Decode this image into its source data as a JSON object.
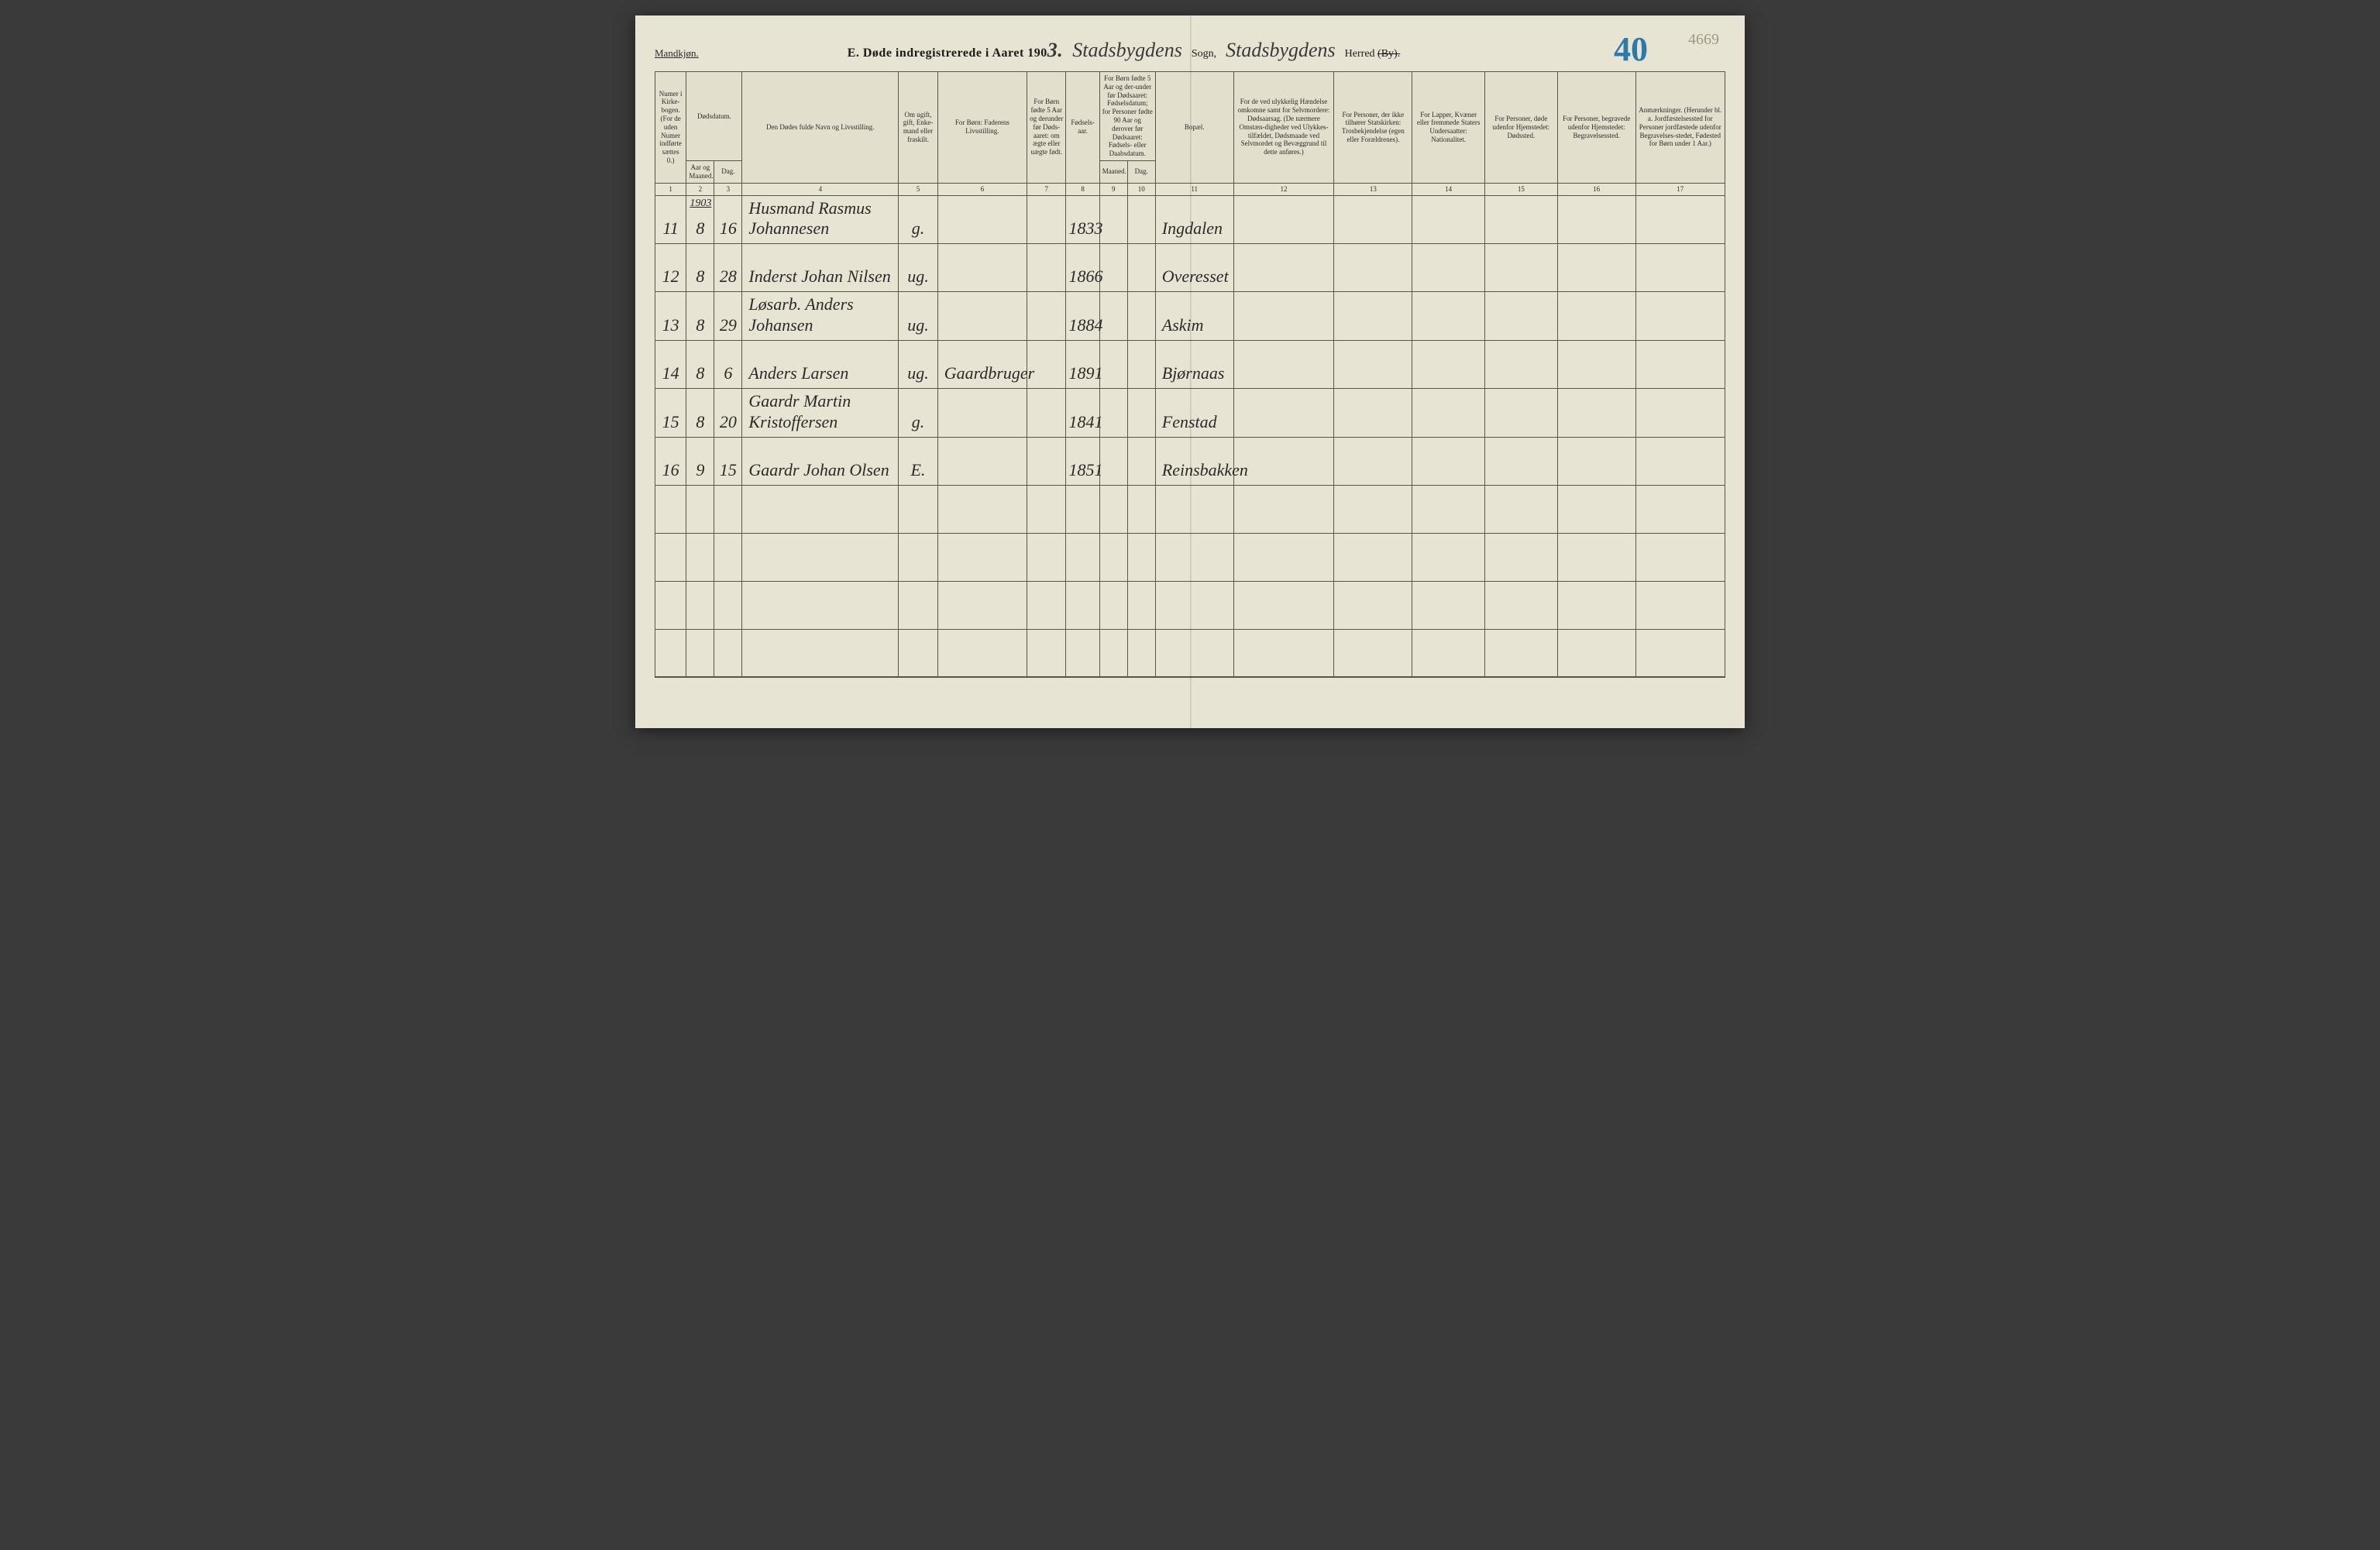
{
  "header": {
    "gender_label": "Mandkjøn.",
    "title_prefix": "E.  Døde indregistrerede i Aaret 190",
    "year_suffix": "3.",
    "sogn_hand": "Stadsbygdens",
    "sogn_label": "Sogn,",
    "herred_hand": "Stadsbygdens",
    "herred_label": "Herred",
    "by_strike": "(By).",
    "page_blue": "40",
    "page_pencil": "4669"
  },
  "columns": {
    "c1": "Numer i Kirke-bogen. (For de uden Numer indførte sættes 0.)",
    "c2_top": "Dødsdatum.",
    "c2": "Aar og Maaned.",
    "c3": "Dag.",
    "c4": "Den Dødes fulde Navn og Livsstilling.",
    "c5": "Om ugift, gift, Enke-mand eller fraskilt.",
    "c6": "For Børn: Faderens Livsstilling.",
    "c7": "For Børn fødte 5 Aar og derunder før Døds-aaret: om ægte eller uægte født.",
    "c8": "Fødsels-aar.",
    "c9_10_top": "For Børn fødte 5 Aar og der-under før Dødsaaret: Fødselsdatum; for Personer fødte 90 Aar og derover før Dødsaaret: Fødsels- eller Daabsdatum.",
    "c9": "Maaned.",
    "c10": "Dag.",
    "c11": "Bopæl.",
    "c12": "For de ved ulykkelig Hændelse omkomne samt for Selvmordere: Dødsaarsag. (De nærmere Omstæn-digheder ved Ulykkes-tilfældet, Dødsmaade ved Selvmordet og Bevæggrund til dette anføres.)",
    "c13": "For Personer, der ikke tilhører Statskirken: Trosbekjendelse (egen eller Forældrenes).",
    "c14": "For Lapper, Kvæner eller fremmede Staters Undersaatter: Nationalitet.",
    "c15": "For Personer, døde udenfor Hjemstedet: Dødssted.",
    "c16": "For Personer, begravede udenfor Hjemstedet: Begravelsessted.",
    "c17": "Anmærkninger. (Herunder bl. a. Jordfæstelsessted for Personer jordfæstede udenfor Begravelses-stedet, Fødested for Børn under 1 Aar.)"
  },
  "colnums": [
    "1",
    "2",
    "3",
    "4",
    "5",
    "6",
    "7",
    "8",
    "9",
    "10",
    "11",
    "12",
    "13",
    "14",
    "15",
    "16",
    "17"
  ],
  "year_above": "1903",
  "rows": [
    {
      "n": "11",
      "m": "8",
      "d": "16",
      "name": "Husmand Rasmus Johannesen",
      "stat": "g.",
      "father": "",
      "legit": "",
      "birth": "1833",
      "bm": "",
      "bd": "",
      "place": "Ingdalen"
    },
    {
      "n": "12",
      "m": "8",
      "d": "28",
      "name": "Inderst Johan Nilsen",
      "stat": "ug.",
      "father": "",
      "legit": "",
      "birth": "1866",
      "bm": "",
      "bd": "",
      "place": "Overesset"
    },
    {
      "n": "13",
      "m": "8",
      "d": "29",
      "name": "Løsarb. Anders Johansen",
      "stat": "ug.",
      "father": "",
      "legit": "",
      "birth": "1884",
      "bm": "",
      "bd": "",
      "place": "Askim"
    },
    {
      "n": "14",
      "m": "8",
      "d": "6",
      "name": "Anders Larsen",
      "stat": "ug.",
      "father": "Gaardbruger",
      "legit": "",
      "birth": "1891",
      "bm": "",
      "bd": "",
      "place": "Bjørnaas"
    },
    {
      "n": "15",
      "m": "8",
      "d": "20",
      "name": "Gaardr Martin Kristoffersen",
      "stat": "g.",
      "father": "",
      "legit": "",
      "birth": "1841",
      "bm": "",
      "bd": "",
      "place": "Fenstad"
    },
    {
      "n": "16",
      "m": "9",
      "d": "15",
      "name": "Gaardr Johan Olsen",
      "stat": "E.",
      "father": "",
      "legit": "",
      "birth": "1851",
      "bm": "",
      "bd": "",
      "place": "Reinsbakken"
    }
  ],
  "empty_rows": 4,
  "style": {
    "paper_bg": "#e8e4d4",
    "ink": "#2a2a2a",
    "rule": "#5a5548",
    "blue_pencil": "#2a7aaa",
    "pencil": "#a09a80",
    "header_font_pt": 16,
    "cell_font_pt": 9,
    "hand_font_pt": 22
  }
}
